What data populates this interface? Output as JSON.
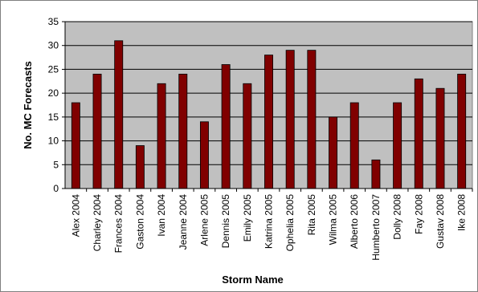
{
  "chart_data": {
    "type": "bar",
    "xlabel": "Storm Name",
    "ylabel": "No. MC Forecasts",
    "ylim": [
      0,
      35
    ],
    "yticks": [
      0,
      5,
      10,
      15,
      20,
      25,
      30,
      35
    ],
    "grid": true,
    "legend": "none",
    "categories": [
      "Alex 2004",
      "Charley 2004",
      "Frances 2004",
      "Gaston 2004",
      "Ivan 2004",
      "Jeanne 2004",
      "Arlene 2005",
      "Dennis 2005",
      "Emily 2005",
      "Katrina 2005",
      "Ophelia 2005",
      "Rita 2005",
      "Wilma 2005",
      "Alberto 2006",
      "Humberto 2007",
      "Dolly 2008",
      "Fay 2008",
      "Gustav 2008",
      "Ike 2008"
    ],
    "values": [
      18,
      24,
      31,
      9,
      22,
      24,
      14,
      26,
      22,
      28,
      29,
      29,
      15,
      18,
      6,
      18,
      23,
      21,
      24
    ],
    "colors": {
      "plot_background": "#c0c0c0",
      "bar_fill": "#800000",
      "bar_stroke": "#000000",
      "gridline": "#000000"
    }
  }
}
